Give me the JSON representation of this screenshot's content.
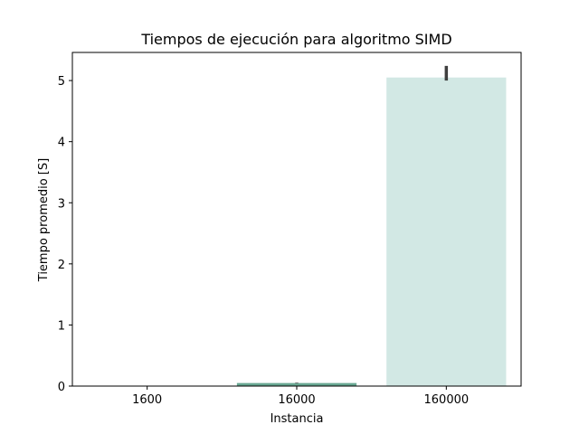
{
  "chart_data": {
    "type": "bar",
    "title": "Tiempos de ejecución para algoritmo SIMD",
    "xlabel": "Instancia",
    "ylabel": "Tiempo promedio [S]",
    "categories": [
      "1600",
      "16000",
      "160000"
    ],
    "values": [
      0.003,
      0.05,
      5.05
    ],
    "error_bars": [
      [
        0.003,
        0.003
      ],
      [
        0.045,
        0.055
      ],
      [
        5.0,
        5.24
      ]
    ],
    "ylim": [
      0,
      5.46
    ],
    "yticks": [
      0,
      1,
      2,
      3,
      4,
      5
    ],
    "grid": false,
    "colors": [
      "#2d7a63",
      "#68a792",
      "#d2e8e4"
    ],
    "error_color": "#3f3f3f"
  }
}
